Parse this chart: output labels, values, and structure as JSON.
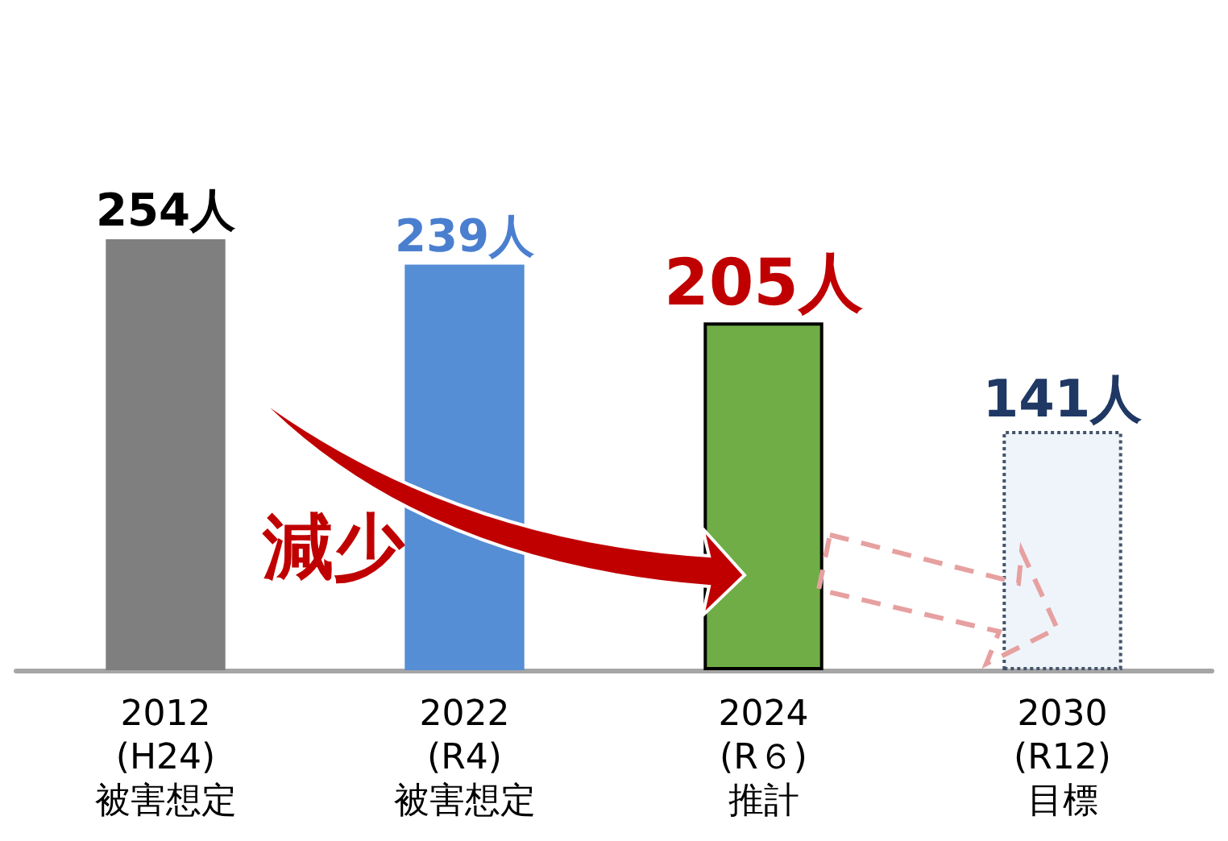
{
  "chart_data": {
    "type": "bar",
    "categories": [
      "2012\n(H24)\n被害想定",
      "2022\n(R4)\n被害想定",
      "2024\n(R６)\n推計",
      "2030\n(R12)\n目標"
    ],
    "values": [
      254,
      239,
      205,
      141
    ],
    "colors": [
      "#7f7f7f",
      "#558ed5",
      "#70ad47",
      "#eef4fa"
    ],
    "value_labels": [
      "254人",
      "239人",
      "205人",
      "141人"
    ],
    "annotations": [
      "減少"
    ]
  }
}
